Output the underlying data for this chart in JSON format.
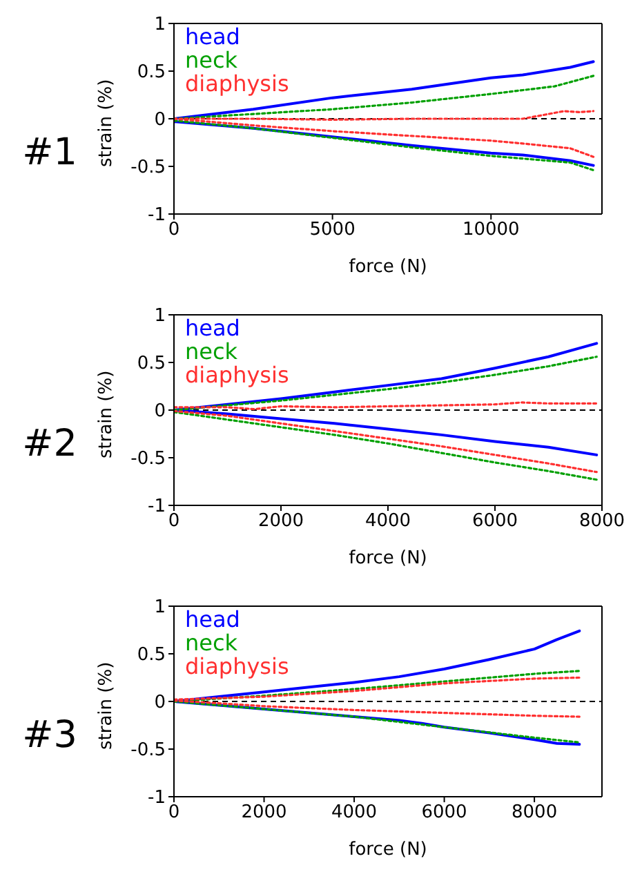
{
  "chart_data": [
    {
      "type": "line",
      "title": "#1",
      "xlabel": "force (N)",
      "ylabel": "strain (%)",
      "xlim": [
        0,
        13500
      ],
      "xticks": [
        0,
        5000,
        10000
      ],
      "ylim": [
        -1,
        1
      ],
      "yticks": [
        -1,
        -0.5,
        0,
        0.5,
        1
      ],
      "grid": false,
      "legend": "top left",
      "marker": "none",
      "ref_lines": [
        {
          "axis": "y",
          "value": 0,
          "color": "#000000",
          "line_style": "dashed"
        }
      ],
      "series": [
        {
          "name": "head",
          "color": "#0000ff",
          "line_style": "solid",
          "x": [
            0,
            2500,
            5000,
            7500,
            10000,
            11000,
            12500,
            13230
          ],
          "values": [
            0,
            0.1,
            0.22,
            0.31,
            0.43,
            0.46,
            0.54,
            0.6
          ]
        },
        {
          "color": "#0000ff",
          "line_style": "solid",
          "x": [
            0,
            2500,
            5000,
            7500,
            10000,
            11000,
            12500,
            13230
          ],
          "values": [
            -0.03,
            -0.1,
            -0.19,
            -0.28,
            -0.36,
            -0.38,
            -0.44,
            -0.49
          ]
        },
        {
          "name": "neck",
          "color": "#00a000",
          "line_style": "dotted",
          "x": [
            0,
            2500,
            5000,
            7500,
            10000,
            12000,
            13230
          ],
          "values": [
            0,
            0.05,
            0.1,
            0.17,
            0.26,
            0.34,
            0.45
          ]
        },
        {
          "color": "#00a000",
          "line_style": "dotted",
          "x": [
            0,
            2500,
            5000,
            7500,
            10000,
            12500,
            13230
          ],
          "values": [
            -0.02,
            -0.1,
            -0.2,
            -0.3,
            -0.39,
            -0.46,
            -0.54
          ]
        },
        {
          "name": "diaphysis",
          "color": "#ff3030",
          "line_style": "dotted",
          "x": [
            0,
            2500,
            5000,
            7500,
            10000,
            11000,
            11500,
            12300,
            12800,
            13230
          ],
          "values": [
            0,
            0,
            -0.01,
            0,
            0,
            0,
            0.03,
            0.08,
            0.07,
            0.08
          ]
        },
        {
          "color": "#ff3030",
          "line_style": "dotted",
          "x": [
            0,
            2500,
            5000,
            7500,
            10000,
            11000,
            12500,
            13230
          ],
          "values": [
            0,
            -0.07,
            -0.13,
            -0.18,
            -0.23,
            -0.26,
            -0.31,
            -0.4
          ]
        }
      ]
    },
    {
      "type": "line",
      "title": "#2",
      "xlabel": "force (N)",
      "ylabel": "strain (%)",
      "xlim": [
        0,
        8000
      ],
      "xticks": [
        0,
        2000,
        4000,
        6000,
        8000
      ],
      "ylim": [
        -1,
        1
      ],
      "yticks": [
        -1,
        -0.5,
        0,
        0.5,
        1
      ],
      "grid": false,
      "legend": "top left",
      "marker": "none",
      "ref_lines": [
        {
          "axis": "y",
          "value": 0,
          "color": "#000000",
          "line_style": "dashed"
        }
      ],
      "series": [
        {
          "name": "head",
          "color": "#0000ff",
          "line_style": "solid",
          "x": [
            0,
            1000,
            2000,
            3000,
            4000,
            5000,
            6000,
            7000,
            7900
          ],
          "values": [
            0,
            0.06,
            0.12,
            0.19,
            0.26,
            0.33,
            0.44,
            0.56,
            0.7
          ]
        },
        {
          "color": "#0000ff",
          "line_style": "solid",
          "x": [
            0,
            1000,
            2000,
            3000,
            4000,
            5000,
            6000,
            7000,
            7900
          ],
          "values": [
            0,
            -0.04,
            -0.09,
            -0.14,
            -0.2,
            -0.26,
            -0.33,
            -0.39,
            -0.47
          ]
        },
        {
          "name": "neck",
          "color": "#00a000",
          "line_style": "dotted",
          "x": [
            0,
            1000,
            2000,
            3000,
            4000,
            5000,
            6000,
            7000,
            7900
          ],
          "values": [
            0,
            0.05,
            0.1,
            0.16,
            0.22,
            0.29,
            0.37,
            0.46,
            0.56
          ]
        },
        {
          "color": "#00a000",
          "line_style": "dotted",
          "x": [
            0,
            1000,
            2000,
            3000,
            4000,
            5000,
            6000,
            7000,
            7900
          ],
          "values": [
            -0.02,
            -0.1,
            -0.18,
            -0.26,
            -0.35,
            -0.45,
            -0.55,
            -0.64,
            -0.73
          ]
        },
        {
          "name": "diaphysis",
          "color": "#ff3030",
          "line_style": "dotted",
          "x": [
            0,
            1000,
            1500,
            2000,
            3000,
            4000,
            5000,
            6000,
            6500,
            7000,
            7900
          ],
          "values": [
            0.03,
            0.03,
            0.01,
            0.04,
            0.03,
            0.04,
            0.05,
            0.06,
            0.08,
            0.07,
            0.07
          ]
        },
        {
          "color": "#ff3030",
          "line_style": "dotted",
          "x": [
            0,
            1000,
            2000,
            3000,
            4000,
            5000,
            6000,
            7000,
            7900
          ],
          "values": [
            -0.01,
            -0.06,
            -0.14,
            -0.22,
            -0.3,
            -0.38,
            -0.47,
            -0.56,
            -0.65
          ]
        }
      ]
    },
    {
      "type": "line",
      "title": "#3",
      "xlabel": "force (N)",
      "ylabel": "strain (%)",
      "xlim": [
        0,
        9500
      ],
      "xticks": [
        0,
        2000,
        4000,
        6000,
        8000
      ],
      "ylim": [
        -1,
        1
      ],
      "yticks": [
        -1,
        -0.5,
        0,
        0.5,
        1
      ],
      "grid": false,
      "legend": "top left",
      "marker": "none",
      "ref_lines": [
        {
          "axis": "y",
          "value": 0,
          "color": "#000000",
          "line_style": "dashed"
        }
      ],
      "series": [
        {
          "name": "head",
          "color": "#0000ff",
          "line_style": "solid",
          "x": [
            0,
            1000,
            2000,
            3000,
            4000,
            5000,
            6000,
            7000,
            8000,
            8500,
            9000
          ],
          "values": [
            0,
            0.05,
            0.1,
            0.15,
            0.2,
            0.26,
            0.34,
            0.44,
            0.55,
            0.65,
            0.74
          ]
        },
        {
          "color": "#0000ff",
          "line_style": "solid",
          "x": [
            0,
            1000,
            2000,
            3000,
            4000,
            5000,
            5500,
            6000,
            7000,
            8000,
            8500,
            9000
          ],
          "values": [
            0,
            -0.04,
            -0.08,
            -0.12,
            -0.16,
            -0.2,
            -0.23,
            -0.27,
            -0.33,
            -0.4,
            -0.44,
            -0.45
          ]
        },
        {
          "name": "neck",
          "color": "#00a000",
          "line_style": "dotted",
          "x": [
            0,
            2000,
            4000,
            6000,
            8000,
            9000
          ],
          "values": [
            0,
            0.06,
            0.13,
            0.21,
            0.29,
            0.32
          ]
        },
        {
          "color": "#00a000",
          "line_style": "dotted",
          "x": [
            0,
            2000,
            4000,
            6000,
            8000,
            9000
          ],
          "values": [
            0,
            -0.08,
            -0.16,
            -0.27,
            -0.38,
            -0.43
          ]
        },
        {
          "name": "diaphysis",
          "color": "#ff3030",
          "line_style": "dotted",
          "x": [
            0,
            2000,
            4000,
            6000,
            8000,
            9000
          ],
          "values": [
            0.02,
            0.05,
            0.11,
            0.19,
            0.24,
            0.25
          ]
        },
        {
          "color": "#ff3030",
          "line_style": "dotted",
          "x": [
            0,
            2000,
            4000,
            6000,
            8000,
            9000
          ],
          "values": [
            0.01,
            -0.05,
            -0.09,
            -0.12,
            -0.15,
            -0.16
          ]
        }
      ]
    }
  ]
}
